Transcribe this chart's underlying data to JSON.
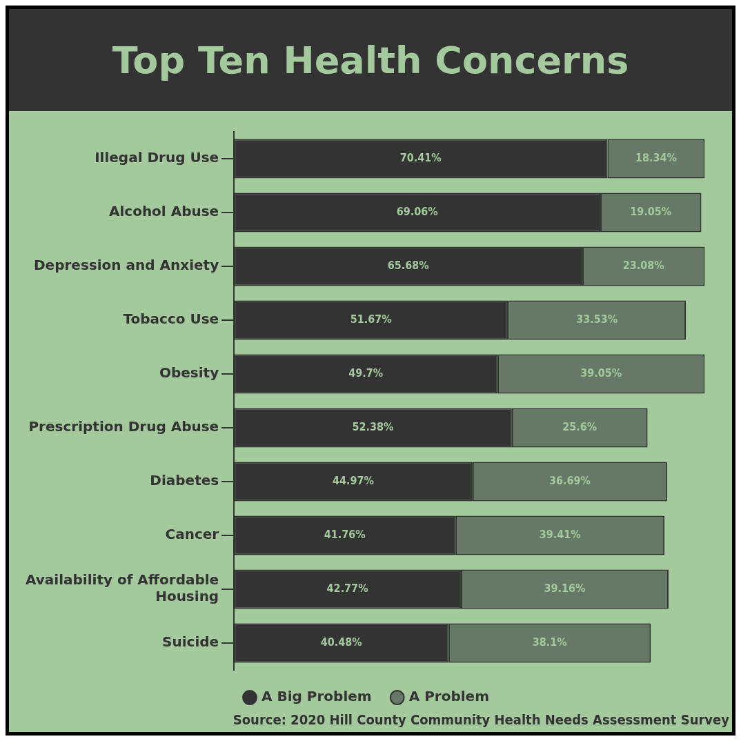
{
  "chart_data": {
    "type": "bar",
    "orientation": "horizontal",
    "stacked": true,
    "title": "Top Ten Health Concerns",
    "categories": [
      "Illegal Drug Use",
      "Alcohol Abuse",
      "Depression and Anxiety",
      "Tobacco Use",
      "Obesity",
      "Prescription Drug Abuse",
      "Diabetes",
      "Cancer",
      "Availability of Affordable Housing",
      "Suicide"
    ],
    "series": [
      {
        "name": "A Big Problem",
        "color": "#333333",
        "values": [
          70.41,
          69.06,
          65.68,
          51.67,
          49.7,
          52.38,
          44.97,
          41.76,
          42.77,
          40.48
        ],
        "value_labels": [
          "70.41%",
          "69.06%",
          "65.68%",
          "51.67%",
          "49.7%",
          "52.38%",
          "44.97%",
          "41.76%",
          "42.77%",
          "40.48%"
        ]
      },
      {
        "name": "A Problem",
        "color": "#667866",
        "values": [
          18.34,
          19.05,
          23.08,
          33.53,
          39.05,
          25.6,
          36.69,
          39.41,
          39.16,
          38.1
        ],
        "value_labels": [
          "18.34%",
          "19.05%",
          "23.08%",
          "33.53%",
          "39.05%",
          "25.6%",
          "36.69%",
          "39.41%",
          "39.16%",
          "38.1%"
        ]
      }
    ],
    "tick_labels": "y",
    "grid": false,
    "legend": "bottom",
    "annotations": [
      "Source: 2020 Hill County Community Health Needs Assessment Survey"
    ]
  }
}
